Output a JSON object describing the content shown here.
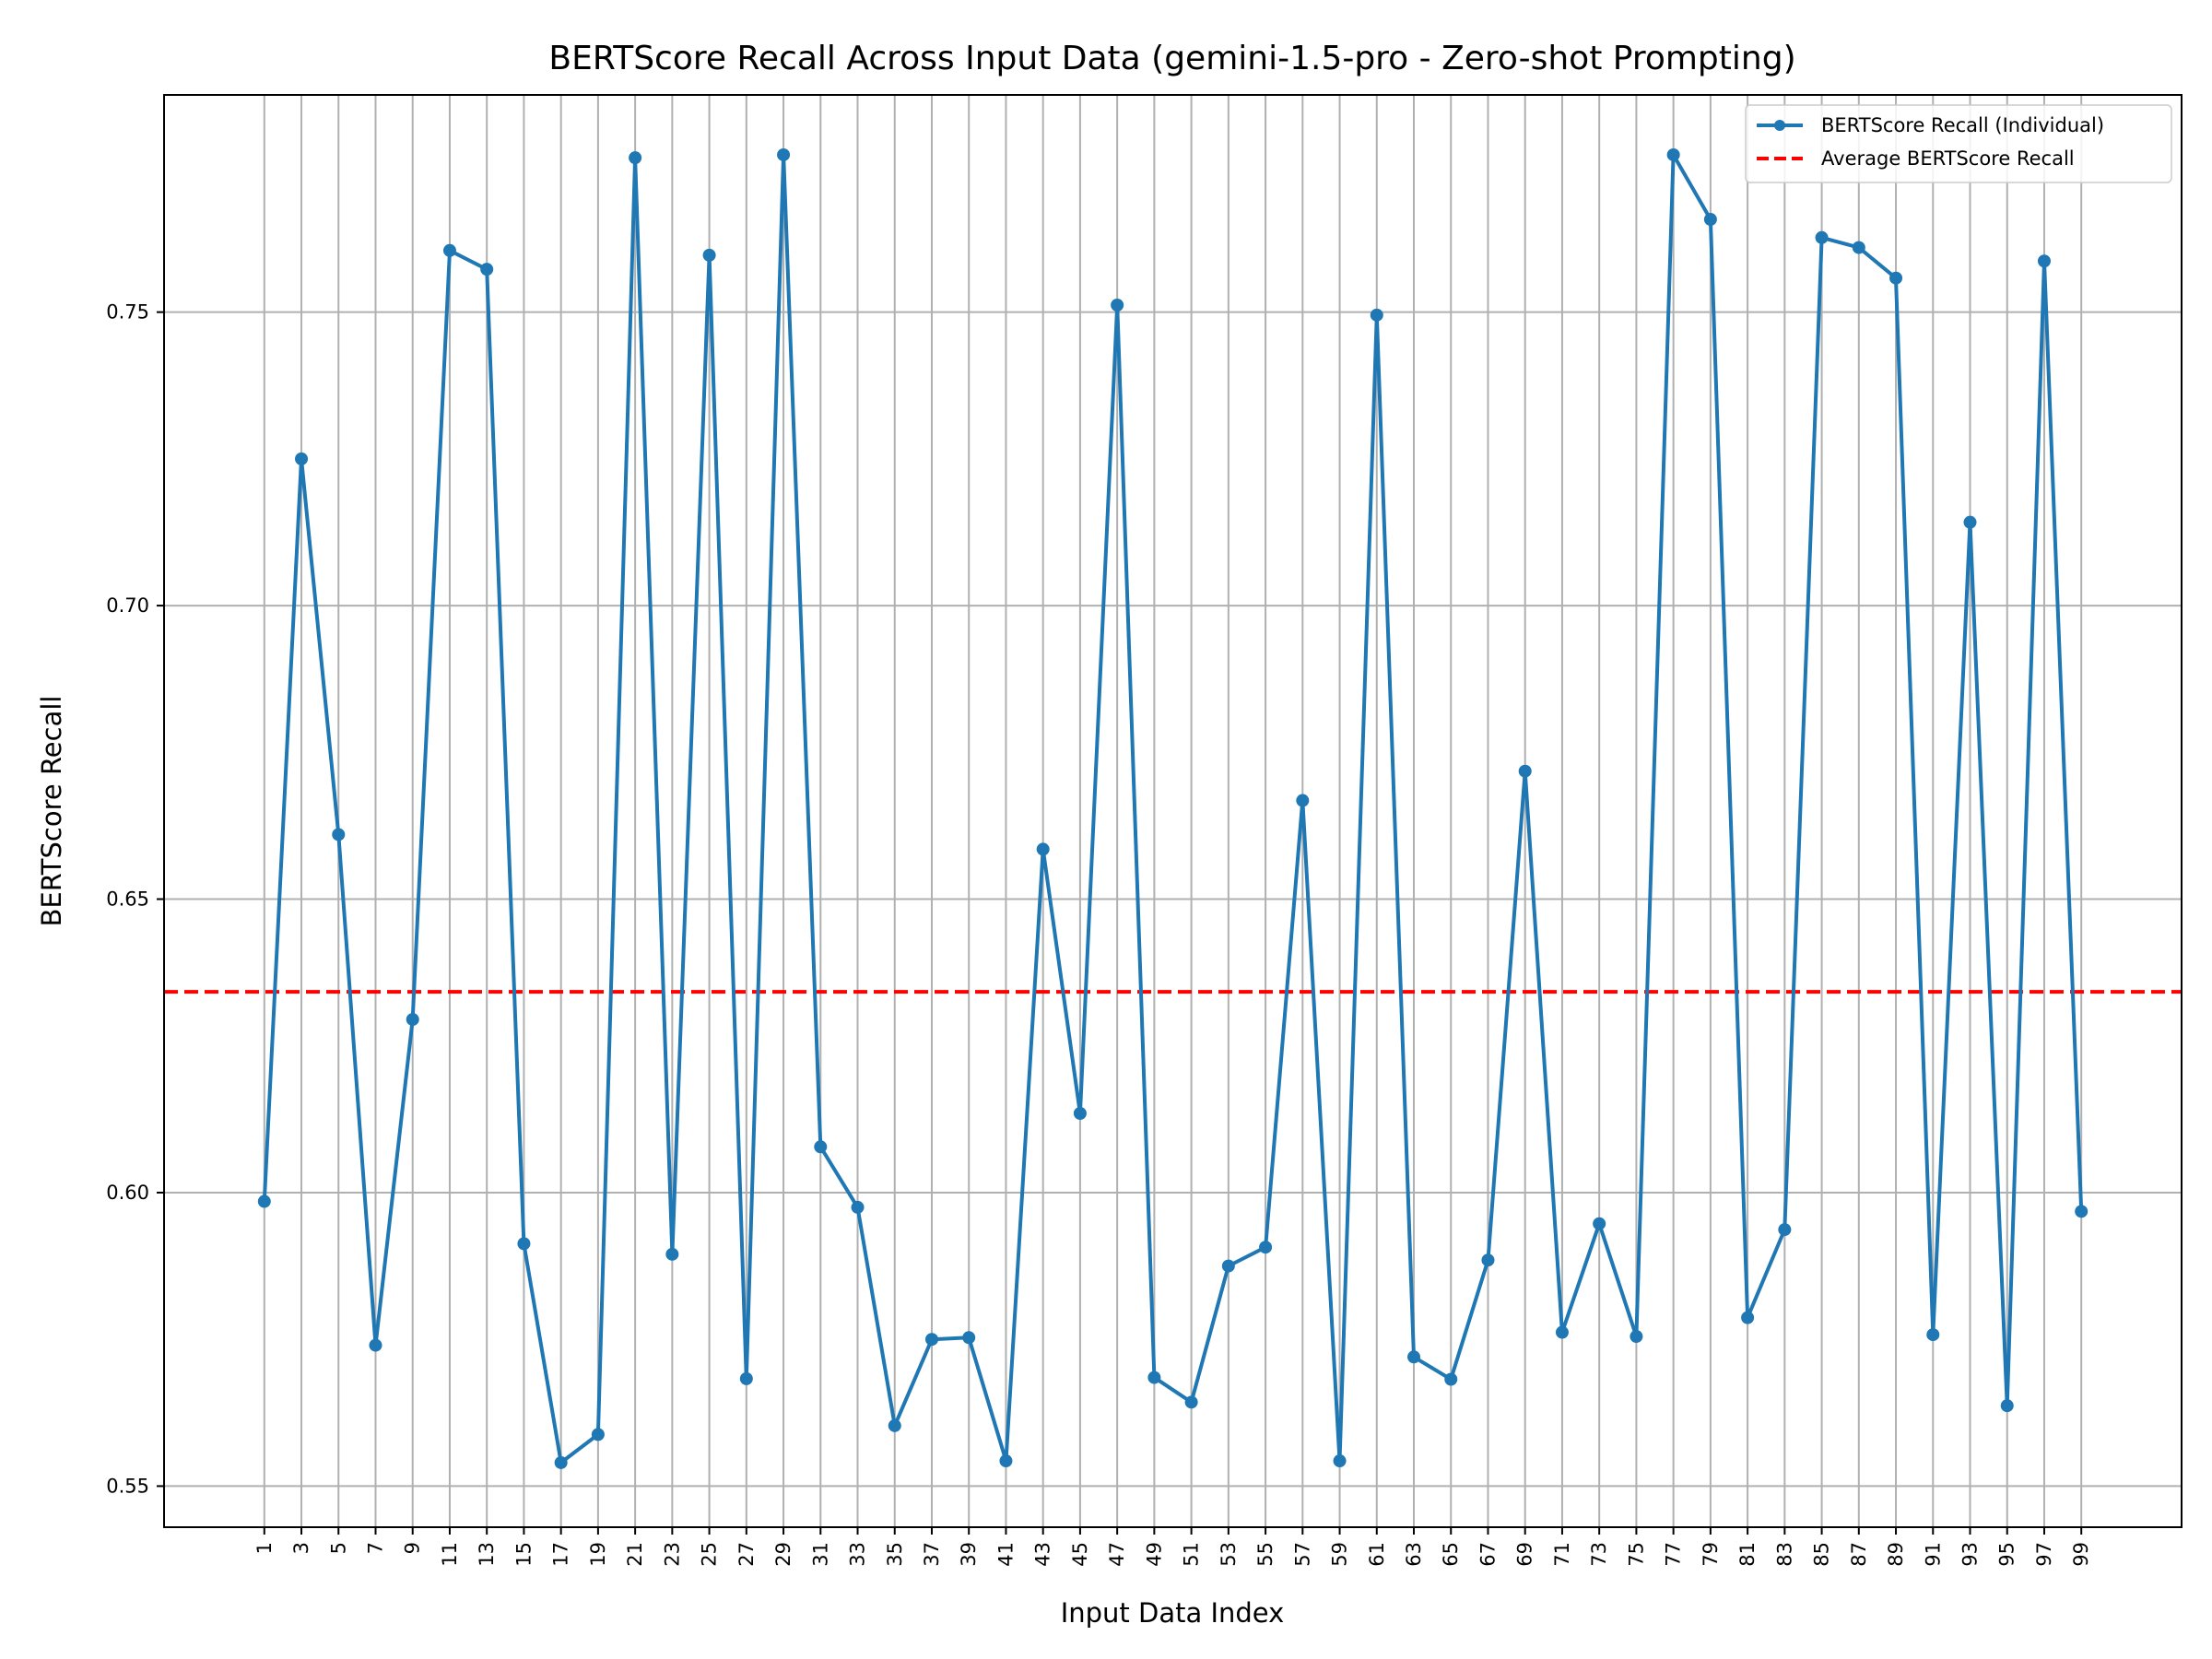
{
  "chart_data": {
    "type": "line",
    "title": "BERTScore Recall Across Input Data (gemini-1.5-pro - Zero-shot Prompting)",
    "xlabel": "Input Data Index",
    "ylabel": "BERTScore Recall",
    "ylim": [
      0.543,
      0.787
    ],
    "yticks": [
      0.55,
      0.6,
      0.65,
      0.7,
      0.75
    ],
    "ytick_labels": [
      "0.55",
      "0.60",
      "0.65",
      "0.70",
      "0.75"
    ],
    "grid": true,
    "legend_position": "top-right",
    "x": [
      1,
      3,
      5,
      7,
      9,
      11,
      13,
      15,
      17,
      19,
      21,
      23,
      25,
      27,
      29,
      31,
      33,
      35,
      37,
      39,
      41,
      43,
      45,
      47,
      49,
      51,
      53,
      55,
      57,
      59,
      61,
      63,
      65,
      67,
      69,
      71,
      73,
      75,
      77,
      79,
      81,
      83,
      85,
      87,
      89,
      91,
      93,
      95,
      97,
      99
    ],
    "series": [
      {
        "name": "BERTScore Recall (Individual)",
        "color": "#1f77b4",
        "style": "solid-line-with-markers",
        "values": [
          0.5985,
          0.725,
          0.661,
          0.574,
          0.6295,
          0.7605,
          0.7573,
          0.5913,
          0.554,
          0.5588,
          0.7763,
          0.5895,
          0.7597,
          0.5683,
          0.7768,
          0.6078,
          0.5975,
          0.5603,
          0.575,
          0.5753,
          0.5543,
          0.6585,
          0.6135,
          0.7512,
          0.5685,
          0.5643,
          0.5875,
          0.5907,
          0.6668,
          0.5543,
          0.7495,
          0.572,
          0.5682,
          0.5885,
          0.6718,
          0.5762,
          0.5947,
          0.5755,
          0.7768,
          0.7658,
          0.5787,
          0.5937,
          0.7627,
          0.761,
          0.7558,
          0.5758,
          0.7142,
          0.5637,
          0.7587,
          0.5968
        ]
      },
      {
        "name": "Average BERTScore Recall",
        "color": "#ff0000",
        "style": "dashed",
        "value": 0.6342
      }
    ]
  }
}
